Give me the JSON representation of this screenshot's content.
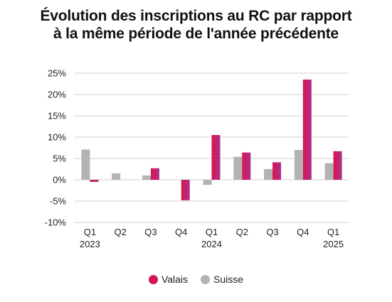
{
  "chart_data": {
    "type": "bar",
    "title_line1": "Évolution des inscriptions au RC par rapport",
    "title_line2": "à la même période de l'année précédente",
    "categories": [
      {
        "q": "Q1",
        "year": "2023"
      },
      {
        "q": "Q2",
        "year": ""
      },
      {
        "q": "Q3",
        "year": ""
      },
      {
        "q": "Q4",
        "year": ""
      },
      {
        "q": "Q1",
        "year": "2024"
      },
      {
        "q": "Q2",
        "year": ""
      },
      {
        "q": "Q3",
        "year": ""
      },
      {
        "q": "Q4",
        "year": ""
      },
      {
        "q": "Q1",
        "year": "2025"
      }
    ],
    "series": [
      {
        "name": "Suisse",
        "color": "#b3b3b3",
        "values": [
          7.1,
          1.5,
          1.0,
          0.0,
          -1.2,
          5.4,
          2.5,
          7.0,
          3.9
        ]
      },
      {
        "name": "Valais",
        "color": "#d4145a",
        "values": [
          -0.5,
          0.0,
          2.7,
          -4.8,
          10.5,
          6.4,
          4.1,
          23.5,
          6.7
        ]
      }
    ],
    "yticks": [
      "25%",
      "20%",
      "15%",
      "10%",
      "5%",
      "0%",
      "-5%",
      "-10%"
    ],
    "ytick_values": [
      25,
      20,
      15,
      10,
      5,
      0,
      -5,
      -10
    ],
    "ylim": [
      -10,
      25
    ],
    "grid": true,
    "legend": [
      {
        "label": "Valais",
        "color": "#d4145a"
      },
      {
        "label": "Suisse",
        "color": "#b3b3b3"
      }
    ],
    "legend_position": "bottom-center"
  }
}
